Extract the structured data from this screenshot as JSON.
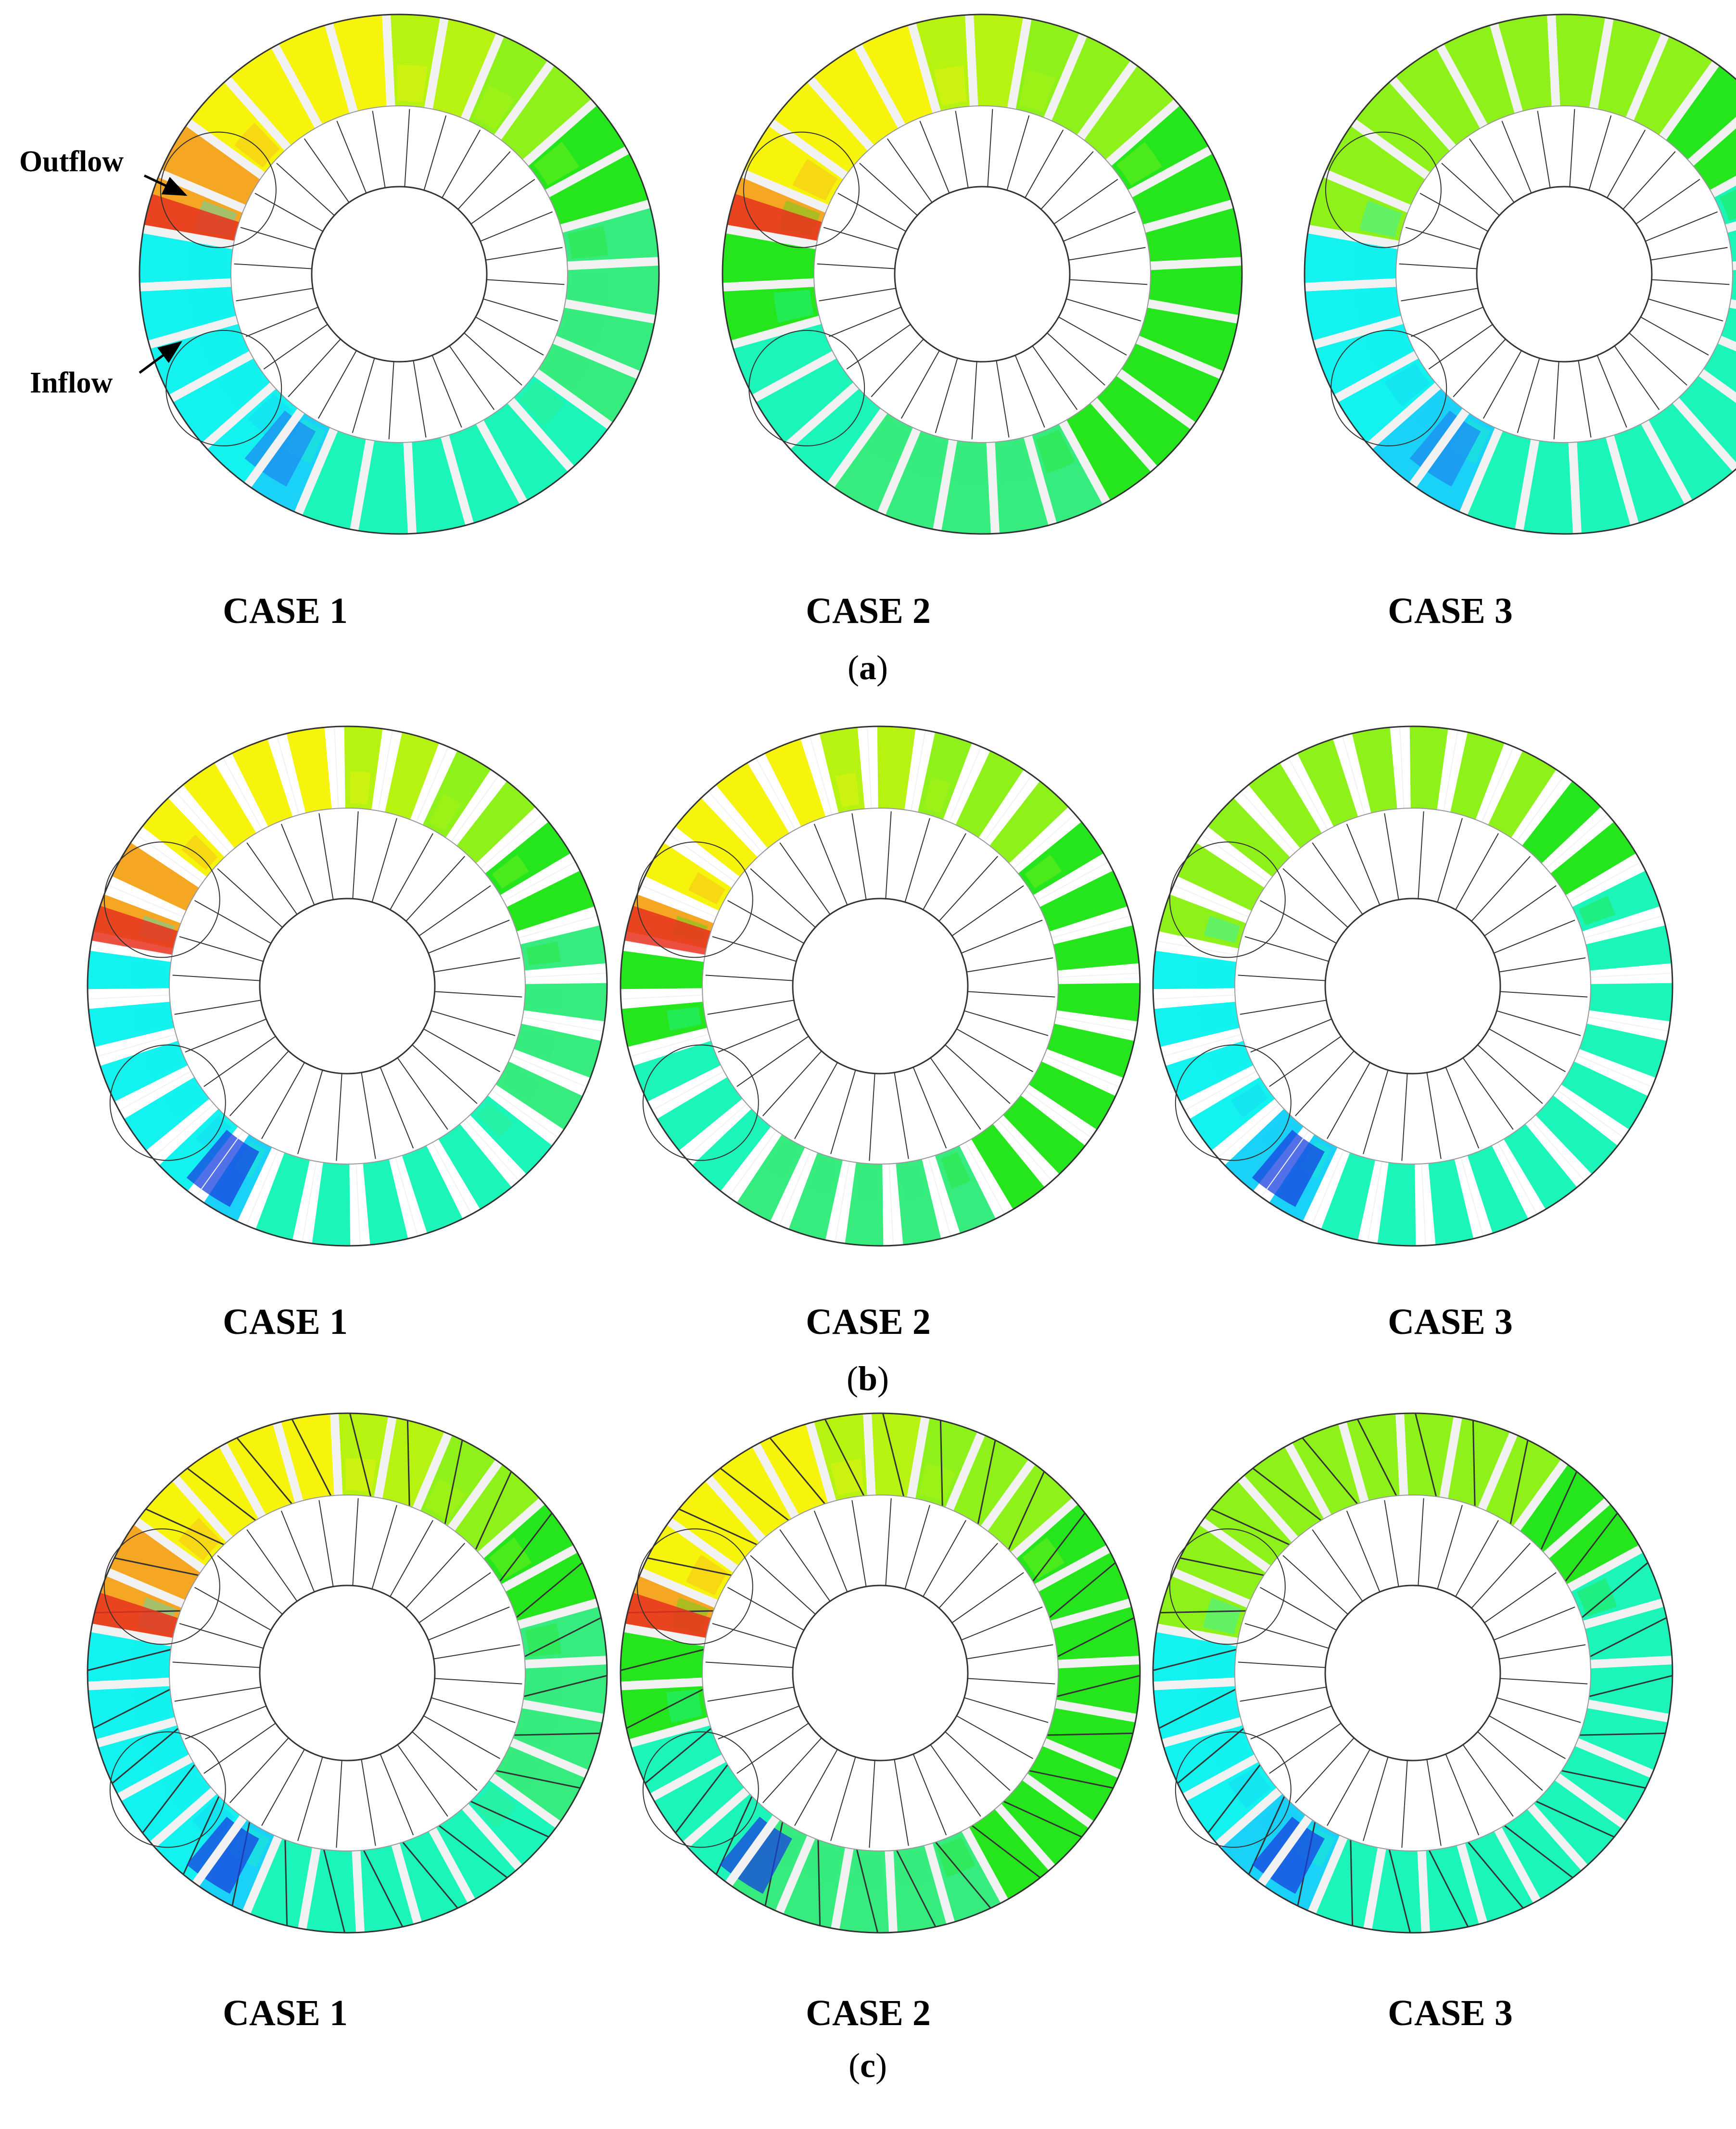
{
  "panels": [
    {
      "letter": "a",
      "style": "plain",
      "cases": [
        {
          "label": "CASE 1",
          "regime": 1
        },
        {
          "label": "CASE 2",
          "regime": 2
        },
        {
          "label": "CASE 3",
          "regime": 3
        }
      ]
    },
    {
      "letter": "b",
      "style": "gapped",
      "cases": [
        {
          "label": "CASE 1",
          "regime": 1
        },
        {
          "label": "CASE 2",
          "regime": 2
        },
        {
          "label": "CASE 3",
          "regime": 3
        }
      ]
    },
    {
      "letter": "c",
      "style": "lined",
      "cases": [
        {
          "label": "CASE 1",
          "regime": 1
        },
        {
          "label": "CASE 2",
          "regime": 2
        },
        {
          "label": "CASE 3",
          "regime": 3
        }
      ]
    }
  ],
  "annotations": {
    "outflow": "Outflow",
    "inflow": "Inflow"
  },
  "colors": {
    "red": "#e8311f",
    "orange": "#f5a623",
    "yellow": "#f7f40c",
    "yellow_green": "#b6f311",
    "light_green": "#8ef21a",
    "green": "#25e61c",
    "teal_green": "#36ec7f",
    "aquamarine": "#1cf5b9",
    "cyan": "#12f2ee",
    "light_blue": "#1ad2f7",
    "blue": "#1c8cf0",
    "deep_blue": "#1840e0",
    "blade": "#f2f2f2",
    "outline": "#333333"
  }
}
